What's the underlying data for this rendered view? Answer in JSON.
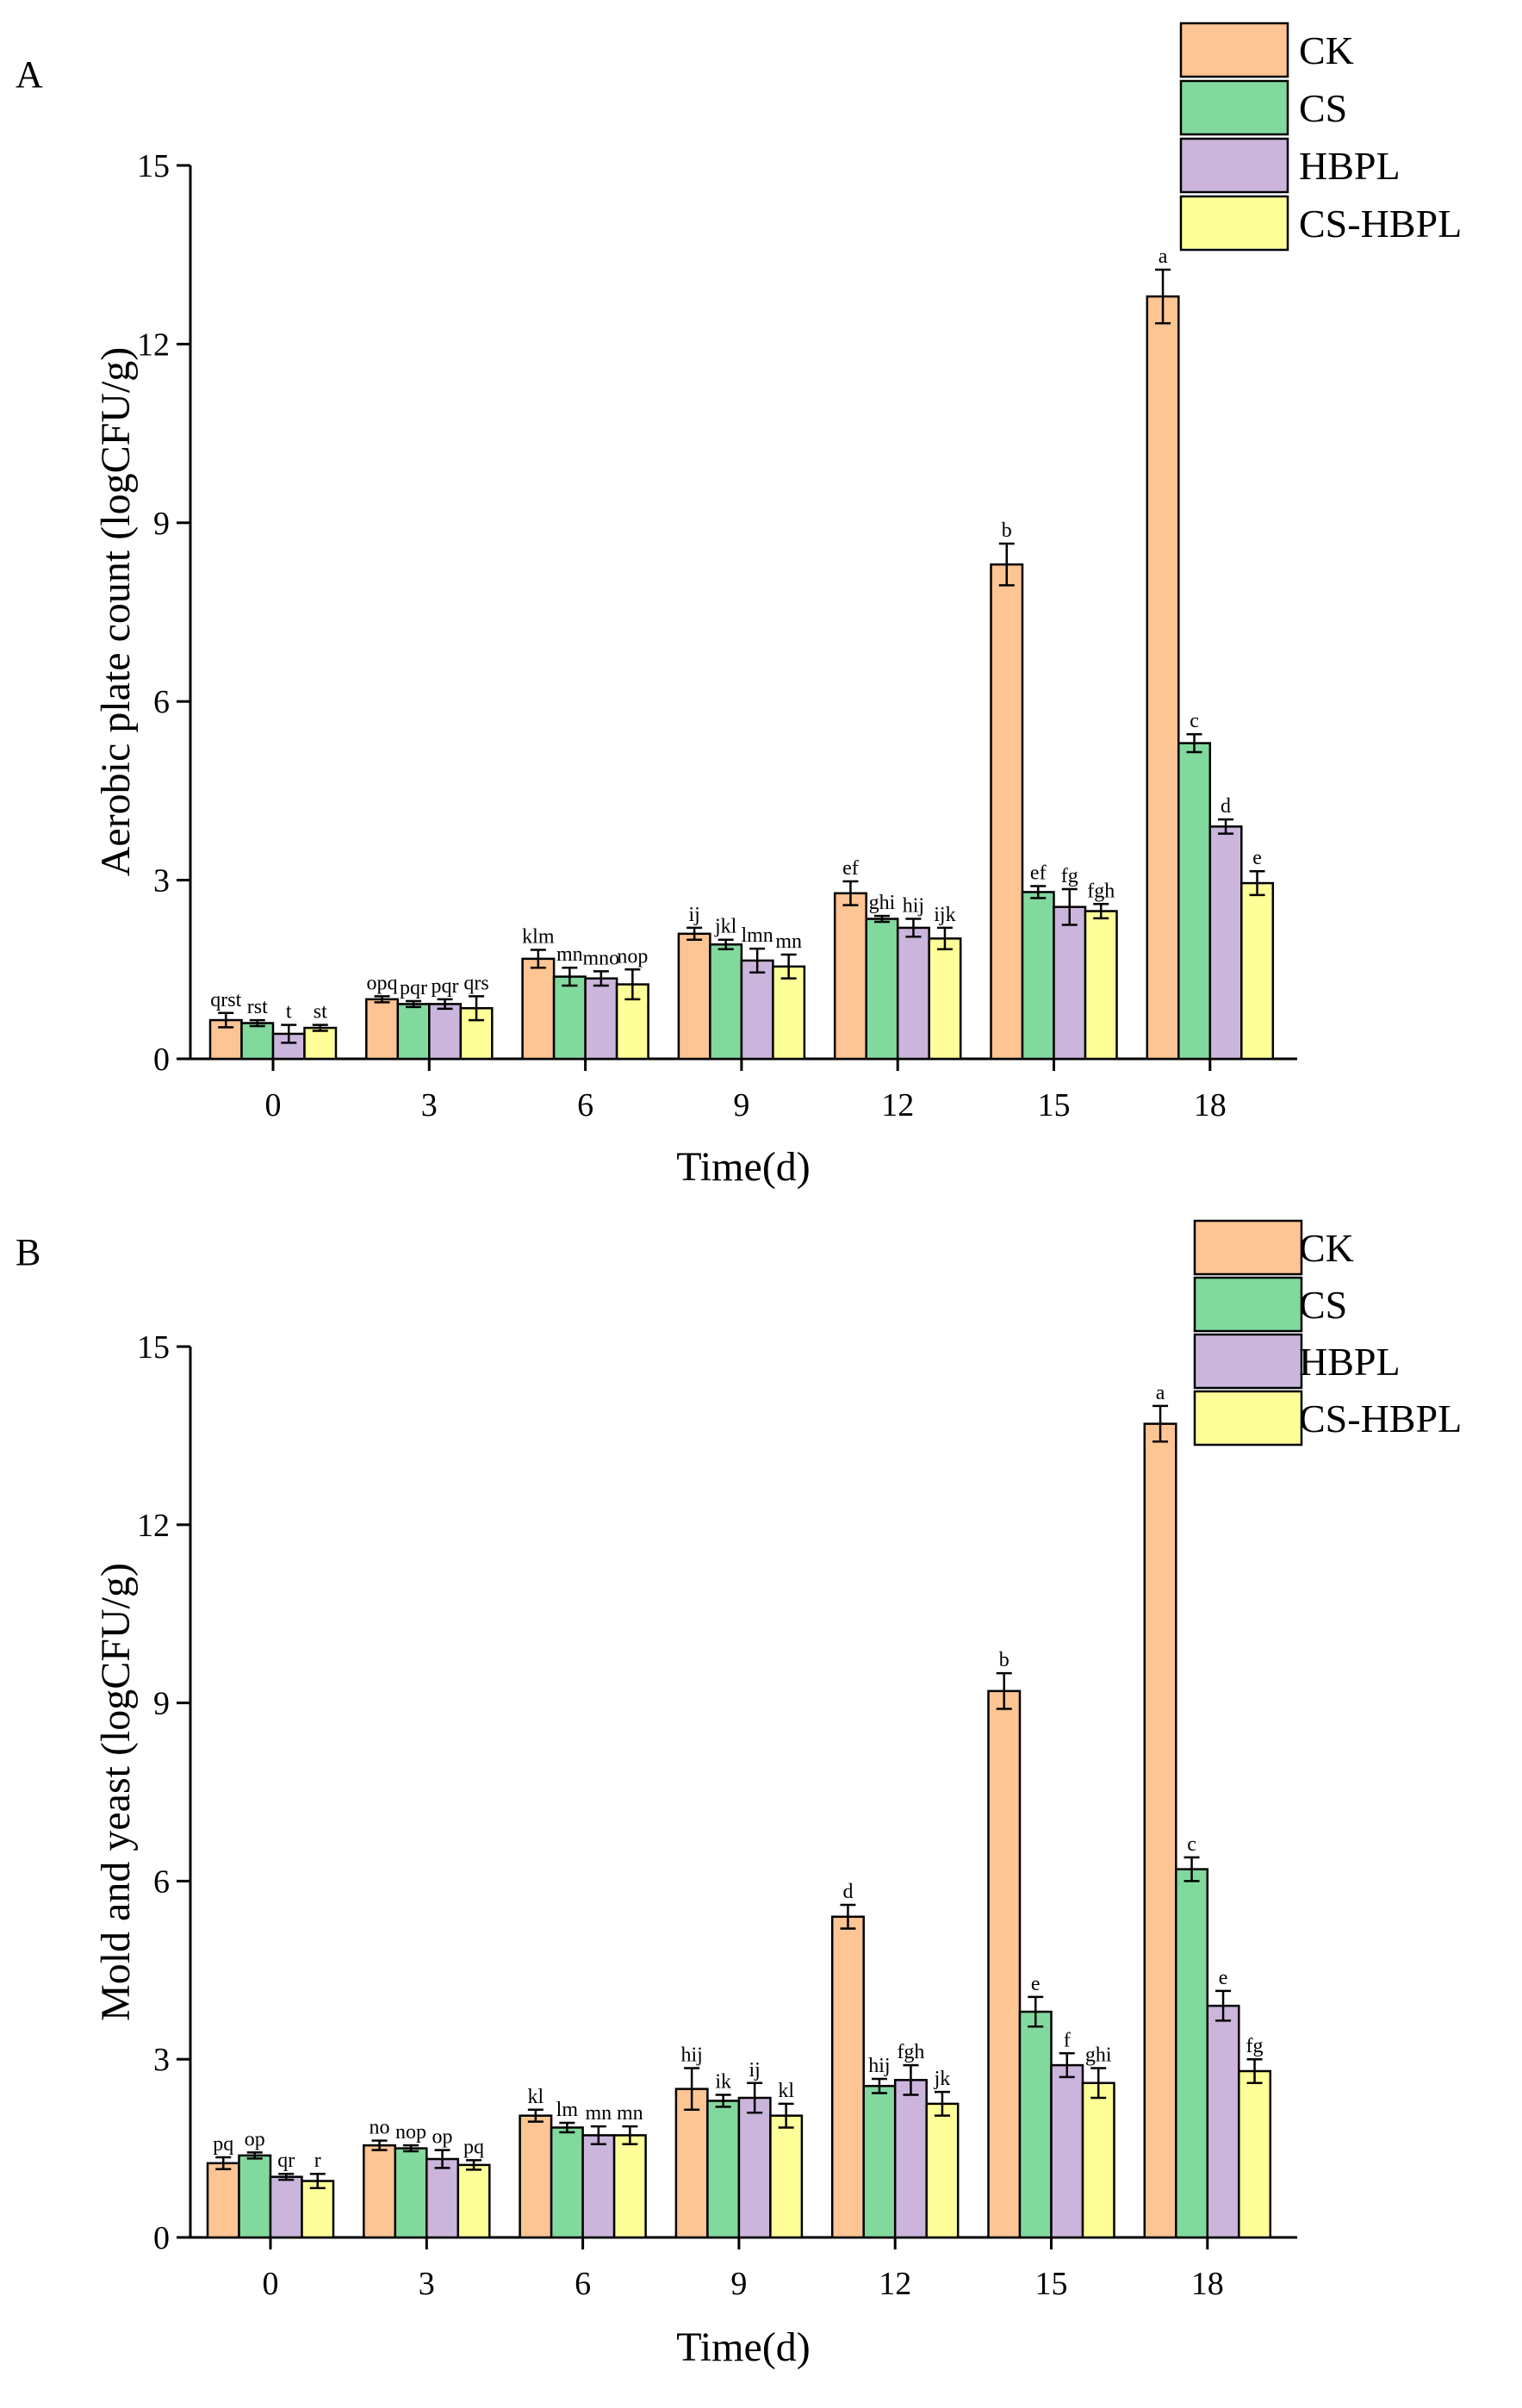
{
  "colors": {
    "CK": "#fdc494",
    "CS": "#82d99e",
    "HBPL": "#cbb5dc",
    "CS-HBPL": "#ffff99"
  },
  "chart_data": [
    {
      "panel_label": "A",
      "type": "bar",
      "title": "",
      "xlabel": "Time(d)",
      "ylabel": "Aerobic plate count (logCFU/g)",
      "ylim": [
        0,
        15
      ],
      "yticks": [
        0,
        3,
        6,
        9,
        12,
        15
      ],
      "grid": false,
      "legend_position": "top-right",
      "categories": [
        "0",
        "3",
        "6",
        "9",
        "12",
        "15",
        "18"
      ],
      "series": [
        {
          "name": "CK",
          "values": [
            0.65,
            1.0,
            1.68,
            2.1,
            2.78,
            8.3,
            12.8
          ],
          "errors": [
            0.12,
            0.05,
            0.15,
            0.1,
            0.2,
            0.35,
            0.45
          ],
          "labels": [
            "qrst",
            "opq",
            "klm",
            "ij",
            "ef",
            "b",
            "a"
          ]
        },
        {
          "name": "CS",
          "values": [
            0.6,
            0.92,
            1.38,
            1.92,
            2.35,
            2.8,
            5.3
          ],
          "errors": [
            0.05,
            0.05,
            0.15,
            0.08,
            0.05,
            0.1,
            0.15
          ],
          "labels": [
            "rst",
            "pqr",
            "mn",
            "jkl",
            "ghi",
            "ef",
            "c"
          ]
        },
        {
          "name": "HBPL",
          "values": [
            0.42,
            0.92,
            1.35,
            1.65,
            2.2,
            2.55,
            3.9
          ],
          "errors": [
            0.15,
            0.08,
            0.12,
            0.2,
            0.15,
            0.3,
            0.12
          ],
          "labels": [
            "t",
            "pqr",
            "mno",
            "lmn",
            "hij",
            "fg",
            "d"
          ]
        },
        {
          "name": "CS-HBPL",
          "values": [
            0.52,
            0.85,
            1.25,
            1.55,
            2.02,
            2.48,
            2.95
          ],
          "errors": [
            0.05,
            0.2,
            0.25,
            0.2,
            0.18,
            0.12,
            0.2
          ],
          "labels": [
            "st",
            "qrs",
            "nop",
            "mn",
            "ijk",
            "fgh",
            "e"
          ]
        }
      ]
    },
    {
      "panel_label": "B",
      "type": "bar",
      "title": "",
      "xlabel": "Time(d)",
      "ylabel": "Mold and yeast (logCFU/g)",
      "ylim": [
        0,
        15
      ],
      "yticks": [
        0,
        3,
        6,
        9,
        12,
        15
      ],
      "grid": false,
      "legend_position": "top-right",
      "categories": [
        "0",
        "3",
        "6",
        "9",
        "12",
        "15",
        "18"
      ],
      "series": [
        {
          "name": "CK",
          "values": [
            1.25,
            1.55,
            2.05,
            2.5,
            5.4,
            9.2,
            13.7
          ],
          "errors": [
            0.1,
            0.08,
            0.1,
            0.35,
            0.2,
            0.3,
            0.3
          ],
          "labels": [
            "pq",
            "no",
            "kl",
            "hij",
            "d",
            "b",
            "a"
          ]
        },
        {
          "name": "CS",
          "values": [
            1.38,
            1.5,
            1.85,
            2.3,
            2.55,
            3.8,
            6.2
          ],
          "errors": [
            0.05,
            0.05,
            0.08,
            0.1,
            0.12,
            0.25,
            0.2
          ],
          "labels": [
            "op",
            "nop",
            "lm",
            "ik",
            "hij",
            "e",
            "c"
          ]
        },
        {
          "name": "HBPL",
          "values": [
            1.02,
            1.32,
            1.72,
            2.35,
            2.65,
            2.9,
            3.9
          ],
          "errors": [
            0.05,
            0.15,
            0.15,
            0.25,
            0.25,
            0.2,
            0.25
          ],
          "labels": [
            "qr",
            "op",
            "mn",
            "ij",
            "fgh",
            "f",
            "e"
          ]
        },
        {
          "name": "CS-HBPL",
          "values": [
            0.95,
            1.22,
            1.72,
            2.05,
            2.25,
            2.6,
            2.8
          ],
          "errors": [
            0.12,
            0.08,
            0.15,
            0.2,
            0.2,
            0.25,
            0.2
          ],
          "labels": [
            "r",
            "pq",
            "mn",
            "kl",
            "jk",
            "ghi",
            "fg"
          ]
        }
      ]
    }
  ]
}
